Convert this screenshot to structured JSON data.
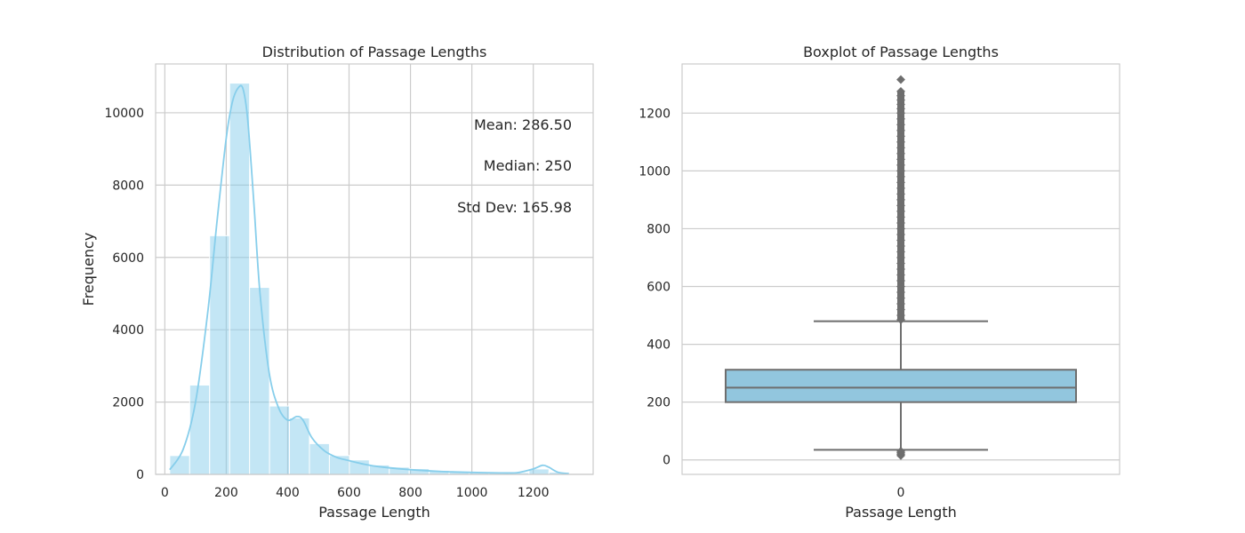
{
  "chart_data": [
    {
      "type": "bar",
      "title": "Distribution of Passage Lengths",
      "xlabel": "Passage Length",
      "ylabel": "Frequency",
      "xlim": [
        -30,
        1395
      ],
      "ylim": [
        0,
        11350
      ],
      "xticks": [
        0,
        200,
        400,
        600,
        800,
        1000,
        1200
      ],
      "yticks": [
        0,
        2000,
        4000,
        6000,
        8000,
        10000
      ],
      "grid": true,
      "bins": [
        {
          "x0": 16,
          "x1": 81,
          "count": 520
        },
        {
          "x0": 81,
          "x1": 146,
          "count": 2470
        },
        {
          "x0": 146,
          "x1": 211,
          "count": 6600
        },
        {
          "x0": 211,
          "x1": 276,
          "count": 10820
        },
        {
          "x0": 276,
          "x1": 341,
          "count": 5170
        },
        {
          "x0": 341,
          "x1": 406,
          "count": 1890
        },
        {
          "x0": 406,
          "x1": 471,
          "count": 1560
        },
        {
          "x0": 471,
          "x1": 536,
          "count": 850
        },
        {
          "x0": 536,
          "x1": 601,
          "count": 520
        },
        {
          "x0": 601,
          "x1": 666,
          "count": 400
        },
        {
          "x0": 666,
          "x1": 731,
          "count": 260
        },
        {
          "x0": 731,
          "x1": 796,
          "count": 200
        },
        {
          "x0": 796,
          "x1": 861,
          "count": 160
        },
        {
          "x0": 861,
          "x1": 926,
          "count": 110
        },
        {
          "x0": 926,
          "x1": 991,
          "count": 70
        },
        {
          "x0": 991,
          "x1": 1056,
          "count": 60
        },
        {
          "x0": 1056,
          "x1": 1121,
          "count": 40
        },
        {
          "x0": 1121,
          "x1": 1186,
          "count": 50
        },
        {
          "x0": 1186,
          "x1": 1251,
          "count": 150
        },
        {
          "x0": 1251,
          "x1": 1316,
          "count": 60
        }
      ],
      "kde": {
        "x": [
          16,
          60,
          100,
          140,
          170,
          200,
          220,
          240,
          255,
          270,
          290,
          310,
          340,
          370,
          400,
          430,
          450,
          480,
          520,
          560,
          600,
          650,
          700,
          800,
          900,
          1000,
          1100,
          1150,
          1200,
          1230,
          1250,
          1280,
          1316
        ],
        "y": [
          130,
          700,
          2000,
          4500,
          7000,
          9300,
          10300,
          10700,
          10650,
          9800,
          7500,
          5000,
          2800,
          1850,
          1500,
          1600,
          1500,
          1000,
          650,
          470,
          380,
          280,
          210,
          130,
          80,
          55,
          40,
          50,
          150,
          250,
          200,
          60,
          20
        ]
      },
      "bar_color": "#87ceeb",
      "kde_color": "#87ceeb",
      "annotations": [
        "Mean: 286.50",
        "Median: 250",
        "Std Dev: 165.98"
      ]
    },
    {
      "type": "box",
      "title": "Boxplot of Passage Lengths",
      "xlabel": "Passage Length",
      "ylabel": "",
      "ylim": [
        -50,
        1370
      ],
      "yticks": [
        0,
        200,
        400,
        600,
        800,
        1000,
        1200
      ],
      "xticks": [
        "0"
      ],
      "grid": true,
      "box": {
        "q1": 200,
        "median": 250,
        "q3": 312,
        "whisker_low": 35,
        "whisker_high": 480
      },
      "outliers_high": [
        485,
        500,
        520,
        540,
        560,
        580,
        600,
        620,
        640,
        660,
        680,
        700,
        720,
        740,
        760,
        780,
        800,
        820,
        840,
        860,
        880,
        900,
        920,
        940,
        960,
        980,
        1000,
        1020,
        1040,
        1060,
        1080,
        1100,
        1120,
        1140,
        1160,
        1180,
        1200,
        1215,
        1230,
        1245,
        1260,
        1275,
        1316
      ],
      "outliers_low": [
        15,
        20,
        25,
        30
      ],
      "box_color": "#92c6de",
      "line_color": "#6e6e6e"
    }
  ]
}
